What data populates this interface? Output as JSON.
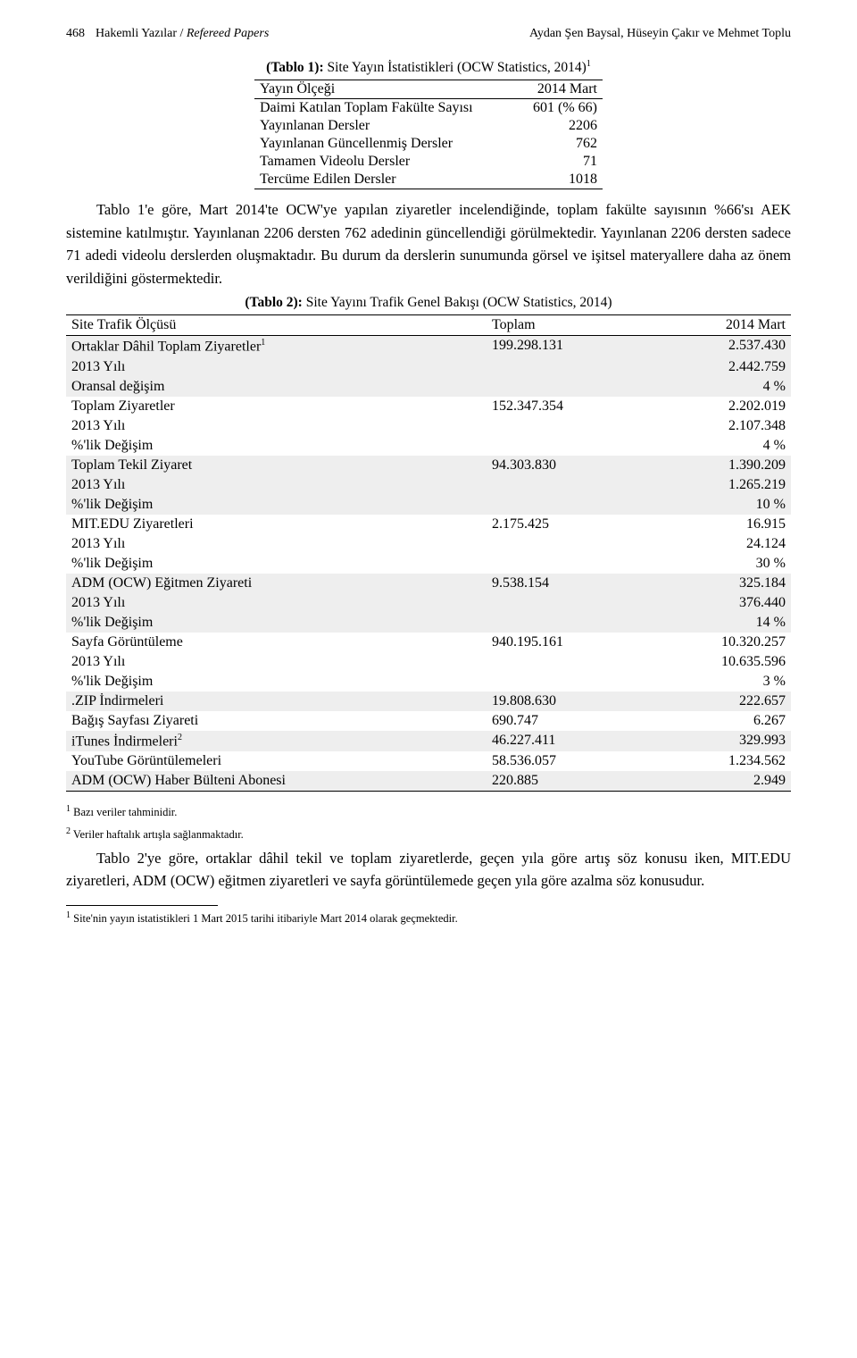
{
  "header": {
    "page_number": "468",
    "heading_left_plain": "Hakemli Yazılar /",
    "heading_left_italic": "Refereed Papers",
    "heading_right": "Aydan Şen Baysal, Hüseyin Çakır ve Mehmet Toplu"
  },
  "tablo1": {
    "title_bold": "(Tablo 1):",
    "title_rest": " Site Yayın İstatistikleri (OCW Statistics, 2014)",
    "title_sup": "1",
    "header_row": {
      "left": "Yayın Ölçeği",
      "right": "2014 Mart"
    },
    "rows": [
      {
        "label": "Daimi Katılan Toplam Fakülte Sayısı",
        "value": "601 (% 66)"
      },
      {
        "label": "Yayınlanan Dersler",
        "value": "2206"
      },
      {
        "label": "Yayınlanan Güncellenmiş Dersler",
        "value": "762"
      },
      {
        "label": "Tamamen Videolu Dersler",
        "value": "71"
      },
      {
        "label": "Tercüme Edilen Dersler",
        "value": "1018"
      }
    ]
  },
  "para1": "Tablo 1'e göre, Mart 2014'te OCW'ye yapılan ziyaretler incelendiğinde, toplam fakülte sayısının %66'sı AEK sistemine katılmıştır. Yayınlanan 2206 dersten 762 adedinin güncellendiği görülmektedir. Yayınlanan 2206 dersten sadece 71 adedi videolu derslerden oluşmaktadır. Bu durum da derslerin sunumunda görsel ve işitsel materyallere daha az önem verildiğini göstermektedir.",
  "tablo2": {
    "title_bold": "(Tablo 2):",
    "title_rest": " Site Yayını Trafik Genel Bakışı (OCW Statistics, 2014)",
    "header": {
      "c1": "Site Trafik Ölçüsü",
      "c2": "Toplam",
      "c3": "2014 Mart"
    },
    "rows": [
      {
        "shade": true,
        "c1": "Ortaklar Dâhil Toplam Ziyaretler",
        "sup": "1",
        "c2": "199.298.131",
        "c3": "2.537.430"
      },
      {
        "shade": true,
        "c1": "2013 Yılı",
        "c2": "",
        "c3": "2.442.759"
      },
      {
        "shade": true,
        "c1": "Oransal değişim",
        "c2": "",
        "c3": "4 %"
      },
      {
        "shade": false,
        "c1": "Toplam Ziyaretler",
        "c2": "152.347.354",
        "c3": "2.202.019"
      },
      {
        "shade": false,
        "c1": "2013 Yılı",
        "c2": "",
        "c3": "2.107.348"
      },
      {
        "shade": false,
        "c1": " %'lik Değişim",
        "c2": "",
        "c3": "4 %"
      },
      {
        "shade": true,
        "c1": "Toplam Tekil Ziyaret",
        "c2": "94.303.830",
        "c3": "1.390.209"
      },
      {
        "shade": true,
        "c1": "2013 Yılı",
        "c2": "",
        "c3": "1.265.219"
      },
      {
        "shade": true,
        "c1": "%'lik Değişim",
        "c2": "",
        "c3": "10 %"
      },
      {
        "shade": false,
        "c1": "MIT.EDU Ziyaretleri",
        "c2": "2.175.425",
        "c3": "16.915"
      },
      {
        "shade": false,
        "c1": "2013 Yılı",
        "c2": "",
        "c3": "24.124"
      },
      {
        "shade": false,
        "c1": "%'lik Değişim",
        "c2": "",
        "c3": "30 %"
      },
      {
        "shade": true,
        "c1": "ADM (OCW) Eğitmen Ziyareti",
        "c2": "9.538.154",
        "c3": "325.184"
      },
      {
        "shade": true,
        "c1": "2013 Yılı",
        "c2": "",
        "c3": "376.440"
      },
      {
        "shade": true,
        "c1": " %'lik Değişim",
        "c2": "",
        "c3": "14 %"
      },
      {
        "shade": false,
        "c1": "Sayfa Görüntüleme",
        "c2": "940.195.161",
        "c3": "10.320.257"
      },
      {
        "shade": false,
        "c1": "2013 Yılı",
        "c2": "",
        "c3": "10.635.596"
      },
      {
        "shade": false,
        "c1": " %'lik Değişim",
        "c2": "",
        "c3": "3 %"
      },
      {
        "shade": true,
        "c1": ".ZIP İndirmeleri",
        "c2": "19.808.630",
        "c3": "222.657"
      },
      {
        "shade": false,
        "c1": "Bağış Sayfası Ziyareti",
        "c2": "690.747",
        "c3": "6.267"
      },
      {
        "shade": true,
        "c1": "iTunes İndirmeleri",
        "sup": "2",
        "c2": "46.227.411",
        "c3": "329.993"
      },
      {
        "shade": false,
        "c1": "YouTube Görüntülemeleri",
        "c2": "58.536.057",
        "c3": "1.234.562"
      },
      {
        "shade": true,
        "c1": "ADM (OCW) Haber Bülteni Abonesi",
        "c2": "220.885",
        "c3": "2.949"
      }
    ]
  },
  "footnotes_table": [
    {
      "sup": "1",
      "text": "Bazı veriler tahminidir."
    },
    {
      "sup": "2",
      "text": "Veriler haftalık artışla sağlanmaktadır."
    }
  ],
  "para2": "Tablo 2'ye göre, ortaklar dâhil tekil ve toplam ziyaretlerde, geçen yıla göre artış söz konusu iken, MIT.EDU ziyaretleri, ADM (OCW) eğitmen ziyaretleri ve sayfa görüntülemede geçen yıla göre azalma söz konusudur.",
  "bottom_footnote": {
    "sup": "1",
    "text": "Site'nin yayın istatistikleri 1 Mart 2015 tarihi itibariyle Mart 2014 olarak geçmektedir."
  },
  "colors": {
    "page_bg": "#ffffff",
    "text": "#000000",
    "shade_bg": "#eeeeee",
    "rule": "#000000"
  },
  "fonts": {
    "body_family": "Times New Roman, Times, serif",
    "body_size_pt": 12,
    "header_size_pt": 10.5,
    "footnote_size_pt": 9.5
  }
}
